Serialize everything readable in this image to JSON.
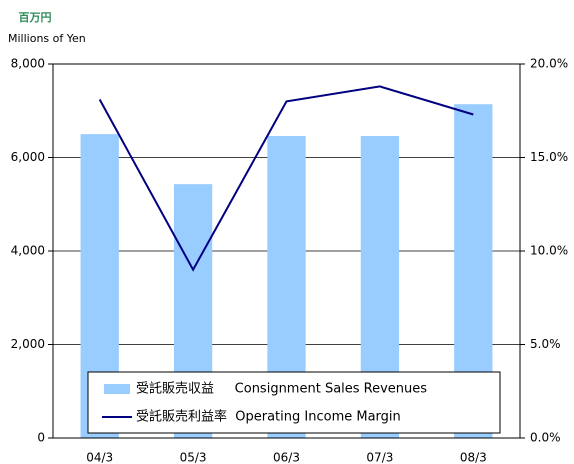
{
  "chart_data": {
    "type": "bar_line",
    "unit_label_jp": "百万円",
    "unit_label_en": "Millions of Yen",
    "categories": [
      "04/3",
      "05/3",
      "06/3",
      "07/3",
      "08/3"
    ],
    "series": [
      {
        "name": "受託販売収益     Consignment Sales Revenues",
        "type": "bar",
        "color": "#99ccff",
        "values": [
          6500,
          5430,
          6460,
          6460,
          7140
        ]
      },
      {
        "name": "受託販売利益率  Operating Income Margin",
        "type": "line",
        "color": "#000080",
        "axis": "y2",
        "values": [
          18.1,
          9.0,
          18.0,
          18.8,
          17.3
        ]
      }
    ],
    "ylim": [
      0,
      8000
    ],
    "yticks": [
      0,
      {
        "value": 2000,
        "label": "2,000"
      },
      {
        "value": 4000,
        "label": "4,000"
      },
      {
        "value": 6000,
        "label": "6,000"
      },
      {
        "value": 8000,
        "label": "8,000"
      }
    ],
    "y2lim": [
      0,
      20
    ],
    "y2ticks": [
      {
        "value": 0,
        "label": "0.0%"
      },
      {
        "value": 5,
        "label": "5.0%"
      },
      {
        "value": 10,
        "label": "10.0%"
      },
      {
        "value": 15,
        "label": "15.0%"
      },
      {
        "value": 20,
        "label": "20.0%"
      }
    ],
    "grid": true,
    "legend": "bottom"
  }
}
